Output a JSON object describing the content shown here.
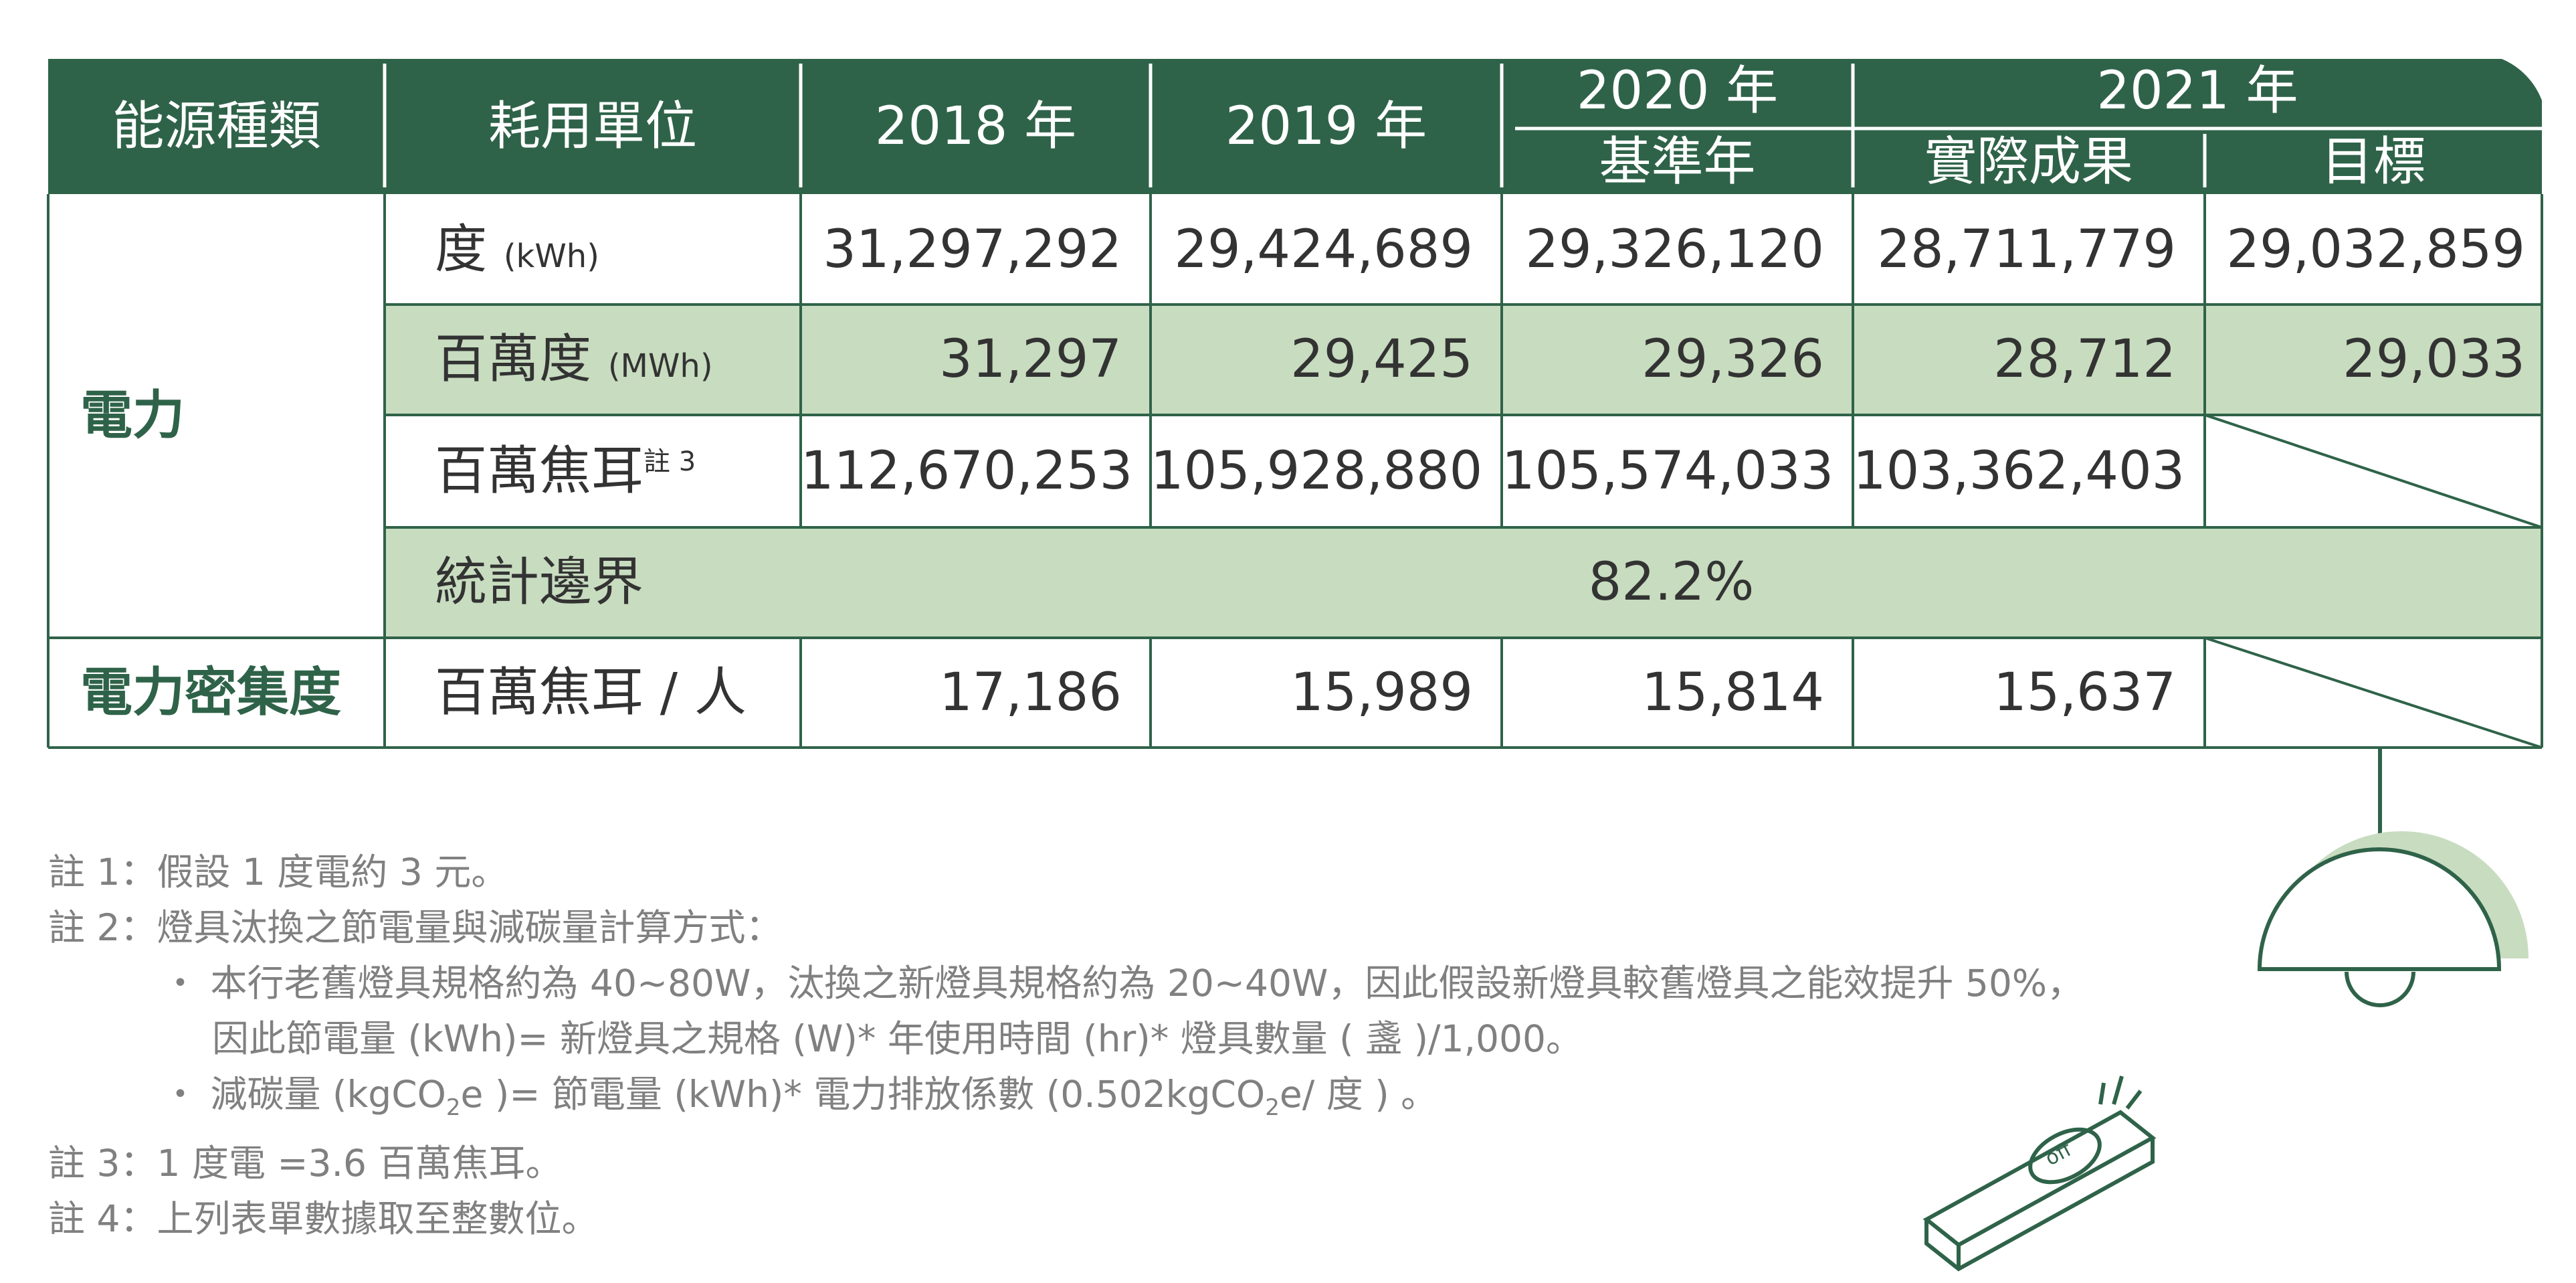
{
  "colors": {
    "header_bg": "#2f6349",
    "row_highlight": "#c8dcc0",
    "border": "#2f6349",
    "notes_text": "#808080",
    "lamp_shade": "#c8dcc0"
  },
  "header": {
    "col_category": "能源種類",
    "col_unit": "耗用單位",
    "year_2018": "2018 年",
    "year_2019": "2019 年",
    "year_2020": "2020 年",
    "year_2020_sub": "基準年",
    "year_2021": "2021 年",
    "year_2021_actual": "實際成果",
    "year_2021_target": "目標"
  },
  "categories": {
    "electricity": "電力",
    "intensity": "電力密集度"
  },
  "rows": {
    "kwh": {
      "unit": "度",
      "unit_sub": "(kWh)",
      "v2018": "31,297,292",
      "v2019": "29,424,689",
      "v2020": "29,326,120",
      "v2021": "28,711,779",
      "target": "29,032,859"
    },
    "mwh": {
      "unit": "百萬度",
      "unit_sub": "(MWh)",
      "v2018": "31,297",
      "v2019": "29,425",
      "v2020": "29,326",
      "v2021": "28,712",
      "target": "29,033"
    },
    "mj": {
      "unit": "百萬焦耳",
      "note": "註 3",
      "v2018": "112,670,253",
      "v2019": "105,928,880",
      "v2020": "105,574,033",
      "v2021": "103,362,403"
    },
    "boundary": {
      "unit": "統計邊界",
      "value": "82.2%"
    },
    "intensity": {
      "unit": "百萬焦耳 / 人",
      "v2018": "17,186",
      "v2019": "15,989",
      "v2020": "15,814",
      "v2021": "15,637"
    }
  },
  "notes": {
    "n1": "註 1：假設 1 度電約 3 元。",
    "n2": "註 2：燈具汰換之節電量與減碳量計算方式：",
    "b1_l1": "本行老舊燈具規格約為 40~80W，汰換之新燈具規格約為 20~40W，因此假設新燈具較舊燈具之能效提升 50%，",
    "b1_l2": "因此節電量 (kWh)= 新燈具之規格 (W)* 年使用時間 (hr)* 燈具數量 ( 盞 )/1,000。",
    "b2_a": "減碳量 (kgCO",
    "b2_b": "e )= 節電量 (kWh)* 電力排放係數 (0.502kgCO",
    "b2_c": "e/ 度 ) 。",
    "sub_2": "2",
    "bullet": "・",
    "n3": "註 3：1 度電 =3.6 百萬焦耳。",
    "n4": "註 4：上列表單數據取至整數位。"
  },
  "switch_label": "off"
}
